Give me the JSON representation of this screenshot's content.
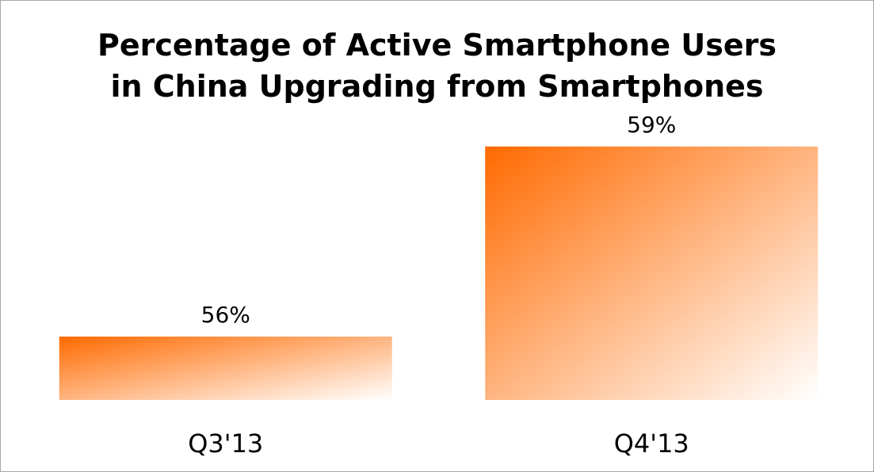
{
  "chart_data": {
    "type": "bar",
    "title": [
      "Percentage of Active Smartphone Users",
      "in China Upgrading from Smartphones"
    ],
    "categories": [
      "Q3'13",
      "Q4'13"
    ],
    "values": [
      56,
      59
    ],
    "data_labels": [
      "56%",
      "59%"
    ],
    "xlabel": "",
    "ylabel": "",
    "ylim": [
      55,
      60
    ],
    "grid": false,
    "legend": "none",
    "bar_colors": {
      "start": "#ff6a00",
      "end": "#ffffff"
    },
    "border_color": "#a6a6a6"
  }
}
